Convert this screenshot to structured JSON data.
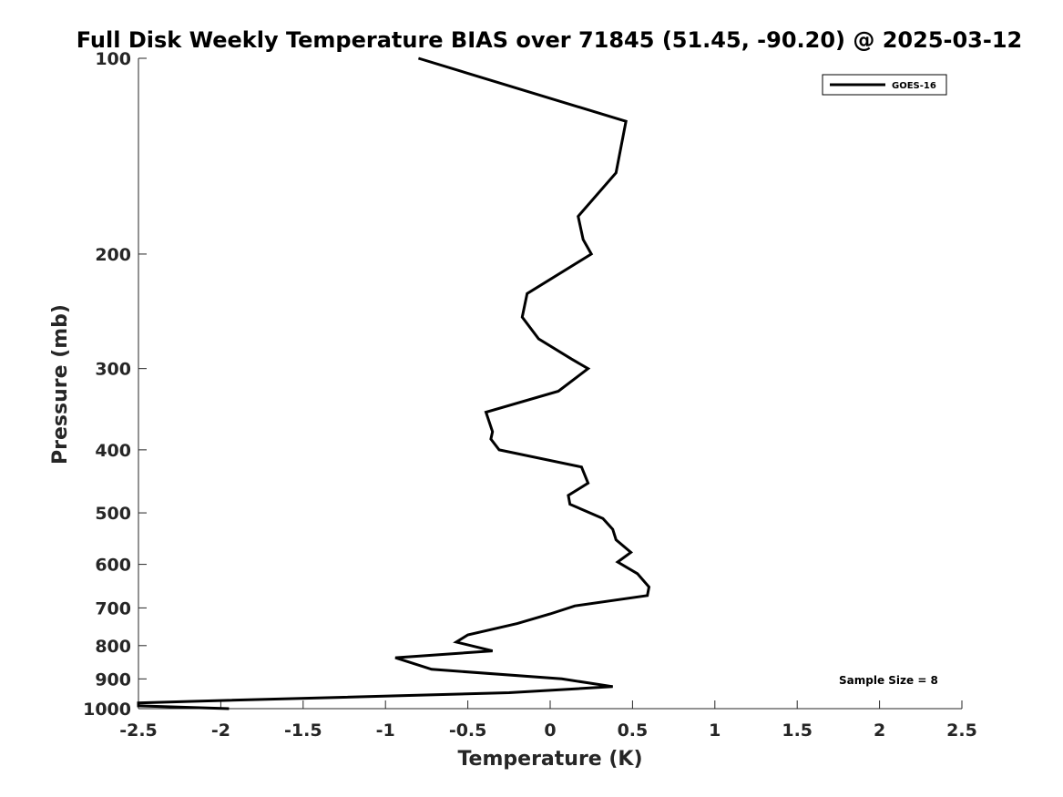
{
  "chart_data": {
    "type": "line",
    "title": "Full Disk Weekly Temperature BIAS over 71845 (51.45, -90.20) @ 2025-03-12",
    "xlabel": "Temperature (K)",
    "ylabel": "Pressure (mb)",
    "xlim": [
      -2.5,
      2.5
    ],
    "ylim": [
      100,
      1000
    ],
    "y_scale": "log",
    "y_reversed": true,
    "grid": false,
    "legend_position": "top-right",
    "x_ticks": [
      -2.5,
      -2,
      -1.5,
      -1,
      -0.5,
      0,
      0.5,
      1,
      1.5,
      2,
      2.5
    ],
    "x_tick_labels": [
      "-2.5",
      "-2",
      "-1.5",
      "-1",
      "-0.5",
      "0",
      "0.5",
      "1",
      "1.5",
      "2",
      "2.5"
    ],
    "y_ticks": [
      100,
      200,
      300,
      400,
      500,
      600,
      700,
      800,
      900,
      1000
    ],
    "y_tick_labels": [
      "100",
      "200",
      "300",
      "400",
      "500",
      "600",
      "700",
      "800",
      "900",
      "1000"
    ],
    "annotation": "Sample Size = 8",
    "series": [
      {
        "name": "GOES-16",
        "color": "#000000",
        "points": [
          {
            "x": -0.8,
            "y": 100
          },
          {
            "x": 0.46,
            "y": 125
          },
          {
            "x": 0.4,
            "y": 150
          },
          {
            "x": 0.17,
            "y": 175
          },
          {
            "x": 0.2,
            "y": 190
          },
          {
            "x": 0.25,
            "y": 200
          },
          {
            "x": -0.14,
            "y": 230
          },
          {
            "x": -0.17,
            "y": 250
          },
          {
            "x": -0.07,
            "y": 270
          },
          {
            "x": 0.13,
            "y": 290
          },
          {
            "x": 0.23,
            "y": 300
          },
          {
            "x": 0.05,
            "y": 325
          },
          {
            "x": -0.39,
            "y": 350
          },
          {
            "x": -0.35,
            "y": 375
          },
          {
            "x": -0.36,
            "y": 385
          },
          {
            "x": -0.31,
            "y": 400
          },
          {
            "x": 0.19,
            "y": 425
          },
          {
            "x": 0.23,
            "y": 450
          },
          {
            "x": 0.11,
            "y": 470
          },
          {
            "x": 0.12,
            "y": 485
          },
          {
            "x": 0.32,
            "y": 510
          },
          {
            "x": 0.38,
            "y": 530
          },
          {
            "x": 0.4,
            "y": 550
          },
          {
            "x": 0.49,
            "y": 575
          },
          {
            "x": 0.41,
            "y": 595
          },
          {
            "x": 0.53,
            "y": 620
          },
          {
            "x": 0.6,
            "y": 650
          },
          {
            "x": 0.59,
            "y": 670
          },
          {
            "x": 0.15,
            "y": 695
          },
          {
            "x": 0.0,
            "y": 715
          },
          {
            "x": -0.2,
            "y": 740
          },
          {
            "x": -0.5,
            "y": 770
          },
          {
            "x": -0.57,
            "y": 790
          },
          {
            "x": -0.35,
            "y": 815
          },
          {
            "x": -0.94,
            "y": 835
          },
          {
            "x": -0.72,
            "y": 870
          },
          {
            "x": 0.07,
            "y": 900
          },
          {
            "x": 0.38,
            "y": 925
          },
          {
            "x": -0.25,
            "y": 945
          },
          {
            "x": -2.2,
            "y": 975
          },
          {
            "x": -2.5,
            "y": 980
          },
          {
            "x": -2.5,
            "y": 990
          },
          {
            "x": -1.95,
            "y": 1000
          }
        ]
      }
    ]
  }
}
